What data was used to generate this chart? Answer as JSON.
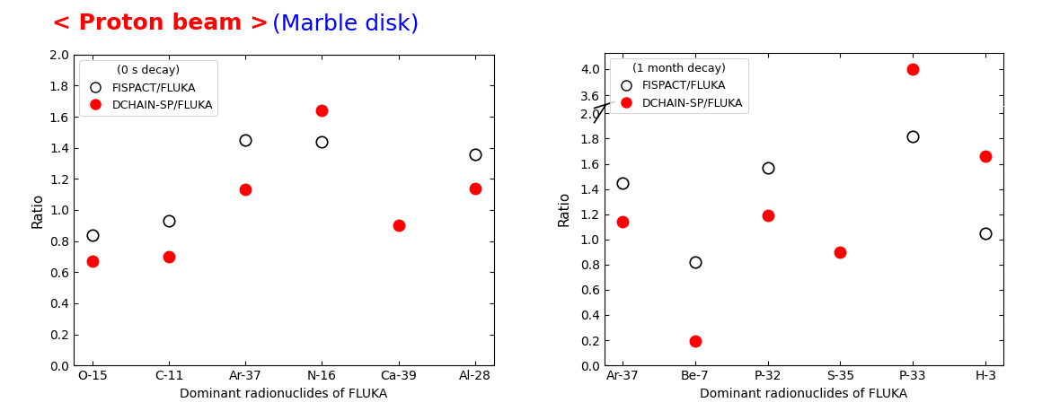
{
  "title_red": "< Proton beam >",
  "title_blue": "  (Marble disk)",
  "title_fontsize": 18,
  "left_plot": {
    "legend_title": "(0 s decay)",
    "xlabel": "Dominant radionuclides of FLUKA",
    "ylabel": "Ratio",
    "ylim": [
      0.0,
      2.0
    ],
    "yticks": [
      0.0,
      0.2,
      0.4,
      0.6,
      0.8,
      1.0,
      1.2,
      1.4,
      1.6,
      1.8,
      2.0
    ],
    "categories": [
      "O-15",
      "C-11",
      "Ar-37",
      "N-16",
      "Ca-39",
      "Al-28"
    ],
    "fispact_values": [
      0.84,
      0.93,
      1.45,
      1.44,
      null,
      1.36
    ],
    "dchain_values": [
      0.67,
      0.7,
      1.13,
      1.64,
      0.9,
      1.14
    ]
  },
  "right_plot": {
    "legend_title": "(1 month decay)",
    "xlabel": "Dominant radionuclides of FLUKA",
    "ylabel": "Ratio",
    "categories": [
      "Ar-37",
      "Be-7",
      "P-32",
      "S-35",
      "P-33",
      "H-3"
    ],
    "fispact_values": [
      1.45,
      0.82,
      1.57,
      null,
      1.82,
      1.05
    ],
    "dchain_values": [
      1.14,
      0.19,
      1.19,
      0.9,
      4.0,
      1.66
    ],
    "lower_ylim": [
      0.0,
      2.05
    ],
    "upper_ylim": [
      3.45,
      4.25
    ],
    "lower_yticks": [
      0.0,
      0.2,
      0.4,
      0.6,
      0.8,
      1.0,
      1.2,
      1.4,
      1.6,
      1.8,
      2.0
    ],
    "upper_yticks": [
      3.6,
      4.0
    ]
  },
  "fispact_color": "white",
  "fispact_edgecolor": "black",
  "dchain_color": "red",
  "marker_size": 9,
  "fispact_label": "FISPACT/FLUKA",
  "dchain_label": "DCHAIN-SP/FLUKA"
}
